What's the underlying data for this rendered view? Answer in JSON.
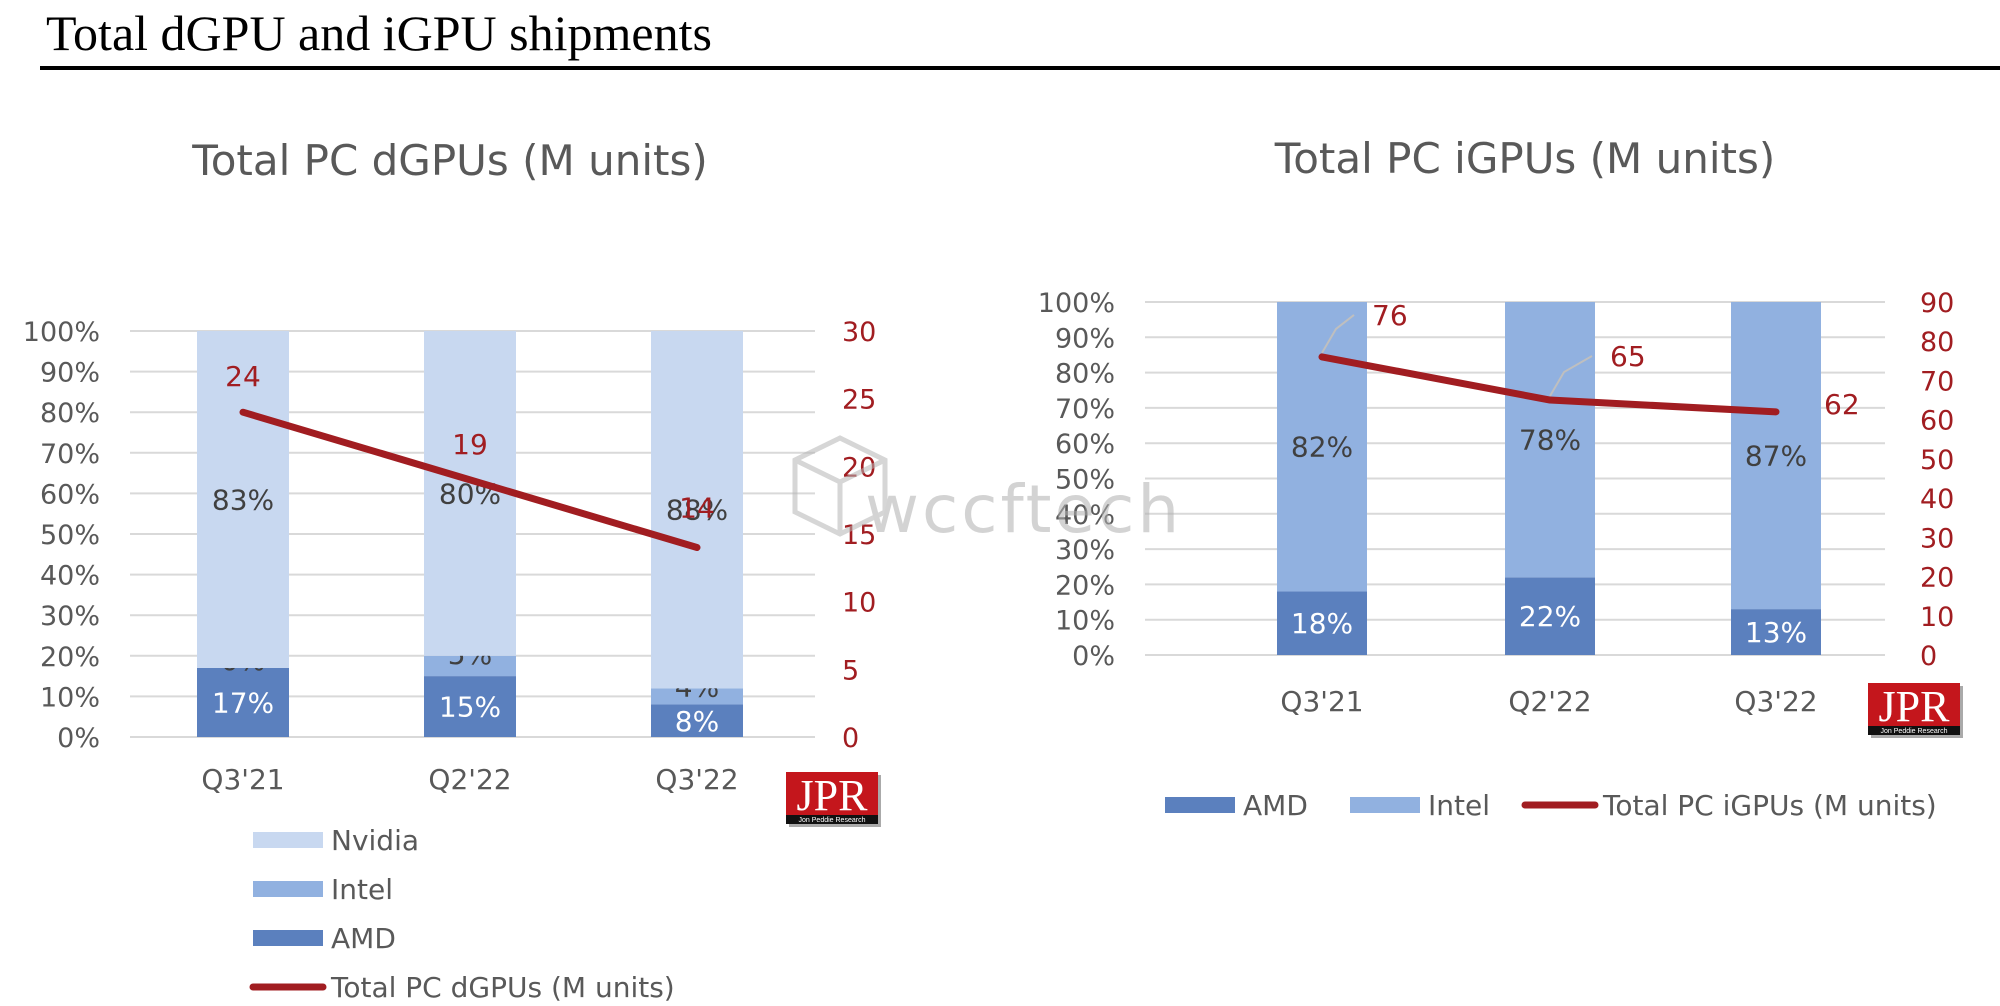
{
  "page_title": "Total dGPU and iGPU shipments",
  "watermark": "wccftech",
  "logo": {
    "text": "JPR",
    "subtext": "Jon Peddie Research",
    "color": "#c4161c"
  },
  "colors": {
    "AMD": "#5b80be",
    "Intel": "#91b1e0",
    "Nvidia": "#c8d8f0",
    "line": "#a11d21",
    "grid": "#d9d9d9"
  },
  "chart_data": [
    {
      "type": "bar",
      "stacked": true,
      "normalized": true,
      "title": "Total PC dGPUs (M units)",
      "categories": [
        "Q3'21",
        "Q2'22",
        "Q3'22"
      ],
      "series": [
        {
          "name": "AMD",
          "values": [
            17,
            15,
            8
          ],
          "labels": [
            "17%",
            "15%",
            "8%"
          ]
        },
        {
          "name": "Intel",
          "values": [
            0,
            5,
            4
          ],
          "labels": [
            "0%",
            "5%",
            "4%"
          ]
        },
        {
          "name": "Nvidia",
          "values": [
            83,
            80,
            88
          ],
          "labels": [
            "83%",
            "80%",
            "88%"
          ]
        }
      ],
      "line_series": {
        "name": "Total PC dGPUs (M units)",
        "values": [
          24,
          19,
          14
        ],
        "labels": [
          "24",
          "19",
          "14"
        ]
      },
      "ylim": [
        0,
        100
      ],
      "y_ticks": [
        "0%",
        "10%",
        "20%",
        "30%",
        "40%",
        "50%",
        "60%",
        "70%",
        "80%",
        "90%",
        "100%"
      ],
      "y2lim": [
        0,
        30
      ],
      "y2_ticks": [
        "0",
        "5",
        "10",
        "15",
        "20",
        "25",
        "30"
      ],
      "legend": {
        "placement": "bottom",
        "entries": [
          {
            "name": "Nvidia",
            "kind": "box"
          },
          {
            "name": "Intel",
            "kind": "box"
          },
          {
            "name": "AMD",
            "kind": "box"
          },
          {
            "name": "Total PC dGPUs (M units)",
            "kind": "line"
          }
        ]
      },
      "grid": true
    },
    {
      "type": "bar",
      "stacked": true,
      "normalized": true,
      "title": "Total PC iGPUs (M units)",
      "categories": [
        "Q3'21",
        "Q2'22",
        "Q3'22"
      ],
      "series": [
        {
          "name": "AMD",
          "values": [
            18,
            22,
            13
          ],
          "labels": [
            "18%",
            "22%",
            "13%"
          ]
        },
        {
          "name": "Intel",
          "values": [
            82,
            78,
            87
          ],
          "labels": [
            "82%",
            "78%",
            "87%"
          ]
        }
      ],
      "line_series": {
        "name": "Total PC iGPUs (M units)",
        "values": [
          76,
          65,
          62
        ],
        "labels": [
          "76",
          "65",
          "62"
        ]
      },
      "ylim": [
        0,
        100
      ],
      "y_ticks": [
        "0%",
        "10%",
        "20%",
        "30%",
        "40%",
        "50%",
        "60%",
        "70%",
        "80%",
        "90%",
        "100%"
      ],
      "y2lim": [
        0,
        90
      ],
      "y2_ticks": [
        "0",
        "10",
        "20",
        "30",
        "40",
        "50",
        "60",
        "70",
        "80",
        "90"
      ],
      "legend": {
        "placement": "bottom",
        "entries": [
          {
            "name": "AMD",
            "kind": "box"
          },
          {
            "name": "Intel",
            "kind": "box"
          },
          {
            "name": "Total PC iGPUs (M units)",
            "kind": "line"
          }
        ]
      },
      "grid": true
    }
  ]
}
